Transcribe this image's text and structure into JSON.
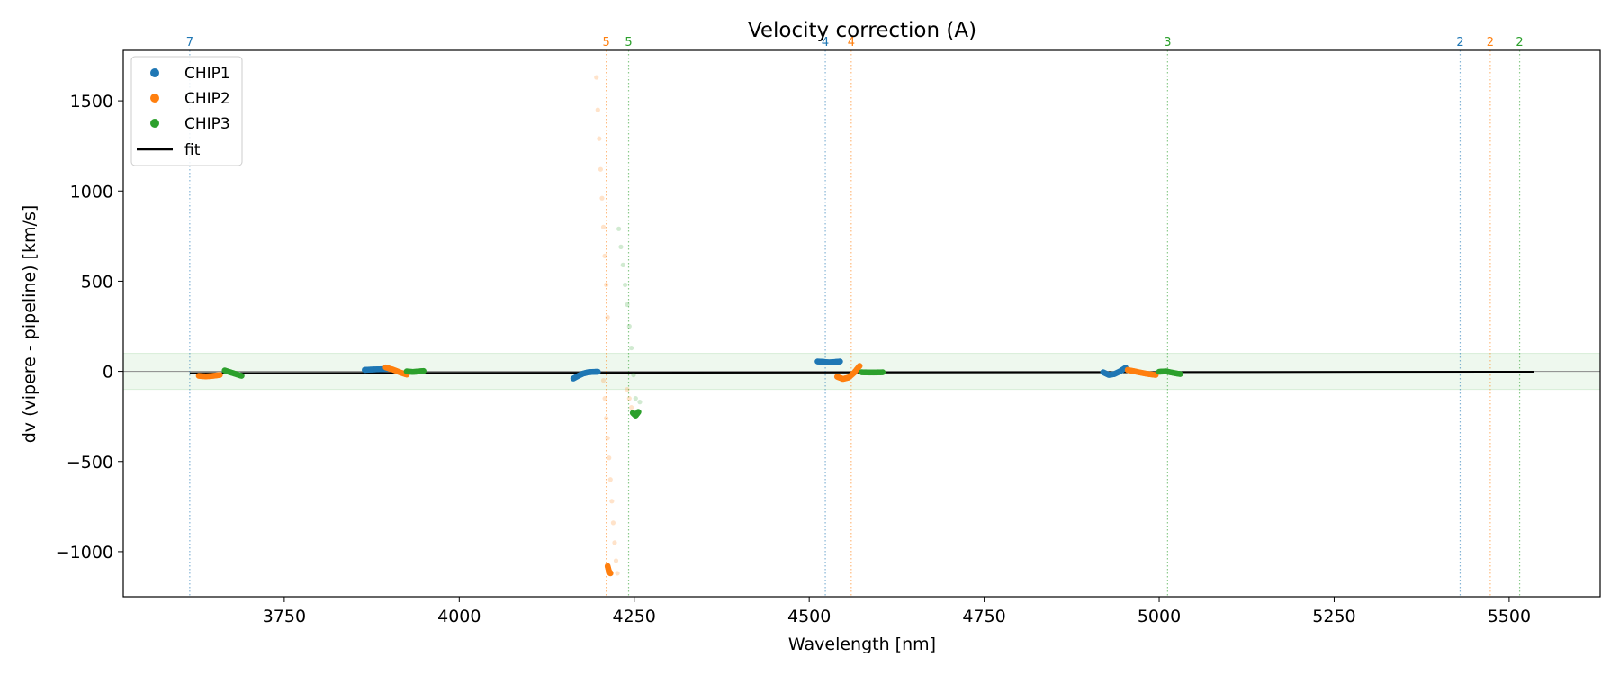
{
  "chart_data": {
    "type": "scatter",
    "title": "Velocity correction (A)",
    "xlabel": "Wavelength [nm]",
    "ylabel": "dv (vipere - pipeline) [km/s]",
    "xlim": [
      3520,
      5630
    ],
    "ylim": [
      -1250,
      1780
    ],
    "xticks": [
      3750,
      4000,
      4250,
      4500,
      4750,
      5000,
      5250,
      5500
    ],
    "yticks": [
      -1000,
      -500,
      0,
      500,
      1000,
      1500
    ],
    "tolerance_band": [
      -100,
      100
    ],
    "zero_line": 0,
    "legend": {
      "location": "upper-left",
      "entries": [
        "CHIP1",
        "CHIP2",
        "CHIP3",
        "fit"
      ]
    },
    "colors": {
      "CHIP1": "#1f77b4",
      "CHIP2": "#ff7f0e",
      "CHIP3": "#2ca02c",
      "fit": "#000000",
      "band": "#2ca02c"
    },
    "fit_line": {
      "x": [
        3615,
        5535
      ],
      "y": [
        -10,
        -2
      ]
    },
    "order_markers": [
      {
        "x": 3615,
        "label": "7",
        "chip": "CHIP1"
      },
      {
        "x": 4210,
        "label": "5",
        "chip": "CHIP2"
      },
      {
        "x": 4242,
        "label": "5",
        "chip": "CHIP3"
      },
      {
        "x": 4523,
        "label": "4",
        "chip": "CHIP1"
      },
      {
        "x": 4560,
        "label": "4",
        "chip": "CHIP2"
      },
      {
        "x": 5012,
        "label": "3",
        "chip": "CHIP3"
      },
      {
        "x": 5430,
        "label": "2",
        "chip": "CHIP1"
      },
      {
        "x": 5473,
        "label": "2",
        "chip": "CHIP2"
      },
      {
        "x": 5515,
        "label": "2",
        "chip": "CHIP3"
      }
    ],
    "series": [
      {
        "name": "CHIP1",
        "segments": [
          {
            "x": [
              3865,
              3873,
              3881,
              3889,
              3897
            ],
            "y": [
              8,
              10,
              11,
              12,
              14
            ],
            "faint": false
          },
          {
            "x": [
              4163,
              4170,
              4177,
              4184,
              4191,
              4198
            ],
            "y": [
              -40,
              -25,
              -12,
              -5,
              -3,
              -2
            ],
            "faint": false
          },
          {
            "x": [
              4512,
              4520,
              4528,
              4536,
              4544
            ],
            "y": [
              55,
              53,
              50,
              52,
              55
            ],
            "faint": false
          },
          {
            "x": [
              4920,
              4928,
              4936,
              4944,
              4952
            ],
            "y": [
              -5,
              -20,
              -15,
              0,
              20
            ],
            "faint": false
          }
        ]
      },
      {
        "name": "CHIP2",
        "segments": [
          {
            "x": [
              3628,
              3638,
              3648,
              3658
            ],
            "y": [
              -25,
              -28,
              -25,
              -20
            ],
            "faint": false
          },
          {
            "x": [
              3895,
              3905,
              3915,
              3925
            ],
            "y": [
              22,
              10,
              -5,
              -18
            ],
            "faint": false
          },
          {
            "x": [
              4196,
              4198,
              4200,
              4202,
              4204,
              4206,
              4208,
              4210,
              4212
            ],
            "y": [
              1630,
              1450,
              1290,
              1120,
              960,
              800,
              640,
              480,
              300
            ],
            "faint": true
          },
          {
            "x": [
              4206,
              4208,
              4210,
              4212,
              4214,
              4216,
              4218,
              4220,
              4222,
              4224,
              4226
            ],
            "y": [
              -50,
              -150,
              -260,
              -370,
              -480,
              -600,
              -720,
              -840,
              -950,
              -1050,
              -1120
            ],
            "faint": true
          },
          {
            "x": [
              4212,
              4214,
              4216
            ],
            "y": [
              -1080,
              -1110,
              -1120
            ],
            "faint": false
          },
          {
            "x": [
              4240,
              4243,
              4246
            ],
            "y": [
              -100,
              -150,
              -200
            ],
            "faint": true
          },
          {
            "x": [
              4540,
              4548,
              4556,
              4564,
              4572
            ],
            "y": [
              -30,
              -42,
              -35,
              -8,
              30
            ],
            "faint": false
          },
          {
            "x": [
              4955,
              4965,
              4975,
              4985,
              4995
            ],
            "y": [
              8,
              0,
              -8,
              -15,
              -20
            ],
            "faint": false
          }
        ]
      },
      {
        "name": "CHIP3",
        "segments": [
          {
            "x": [
              3665,
              3673,
              3681,
              3689
            ],
            "y": [
              5,
              -5,
              -15,
              -25
            ],
            "faint": false
          },
          {
            "x": [
              3925,
              3933,
              3941,
              3949
            ],
            "y": [
              0,
              -3,
              -1,
              2
            ],
            "faint": false
          },
          {
            "x": [
              4228,
              4231,
              4234,
              4237,
              4240,
              4243,
              4246,
              4249,
              4252,
              4255,
              4258
            ],
            "y": [
              790,
              690,
              590,
              480,
              370,
              250,
              130,
              -20,
              -150,
              -220,
              -170
            ],
            "faint": true
          },
          {
            "x": [
              4248,
              4252,
              4256
            ],
            "y": [
              -230,
              -245,
              -225
            ],
            "faint": false
          },
          {
            "x": [
              4575,
              4585,
              4595,
              4605
            ],
            "y": [
              -5,
              -6,
              -6,
              -5
            ],
            "faint": false
          },
          {
            "x": [
              5000,
              5010,
              5020,
              5030
            ],
            "y": [
              -2,
              0,
              -8,
              -15
            ],
            "faint": false
          }
        ]
      }
    ]
  }
}
